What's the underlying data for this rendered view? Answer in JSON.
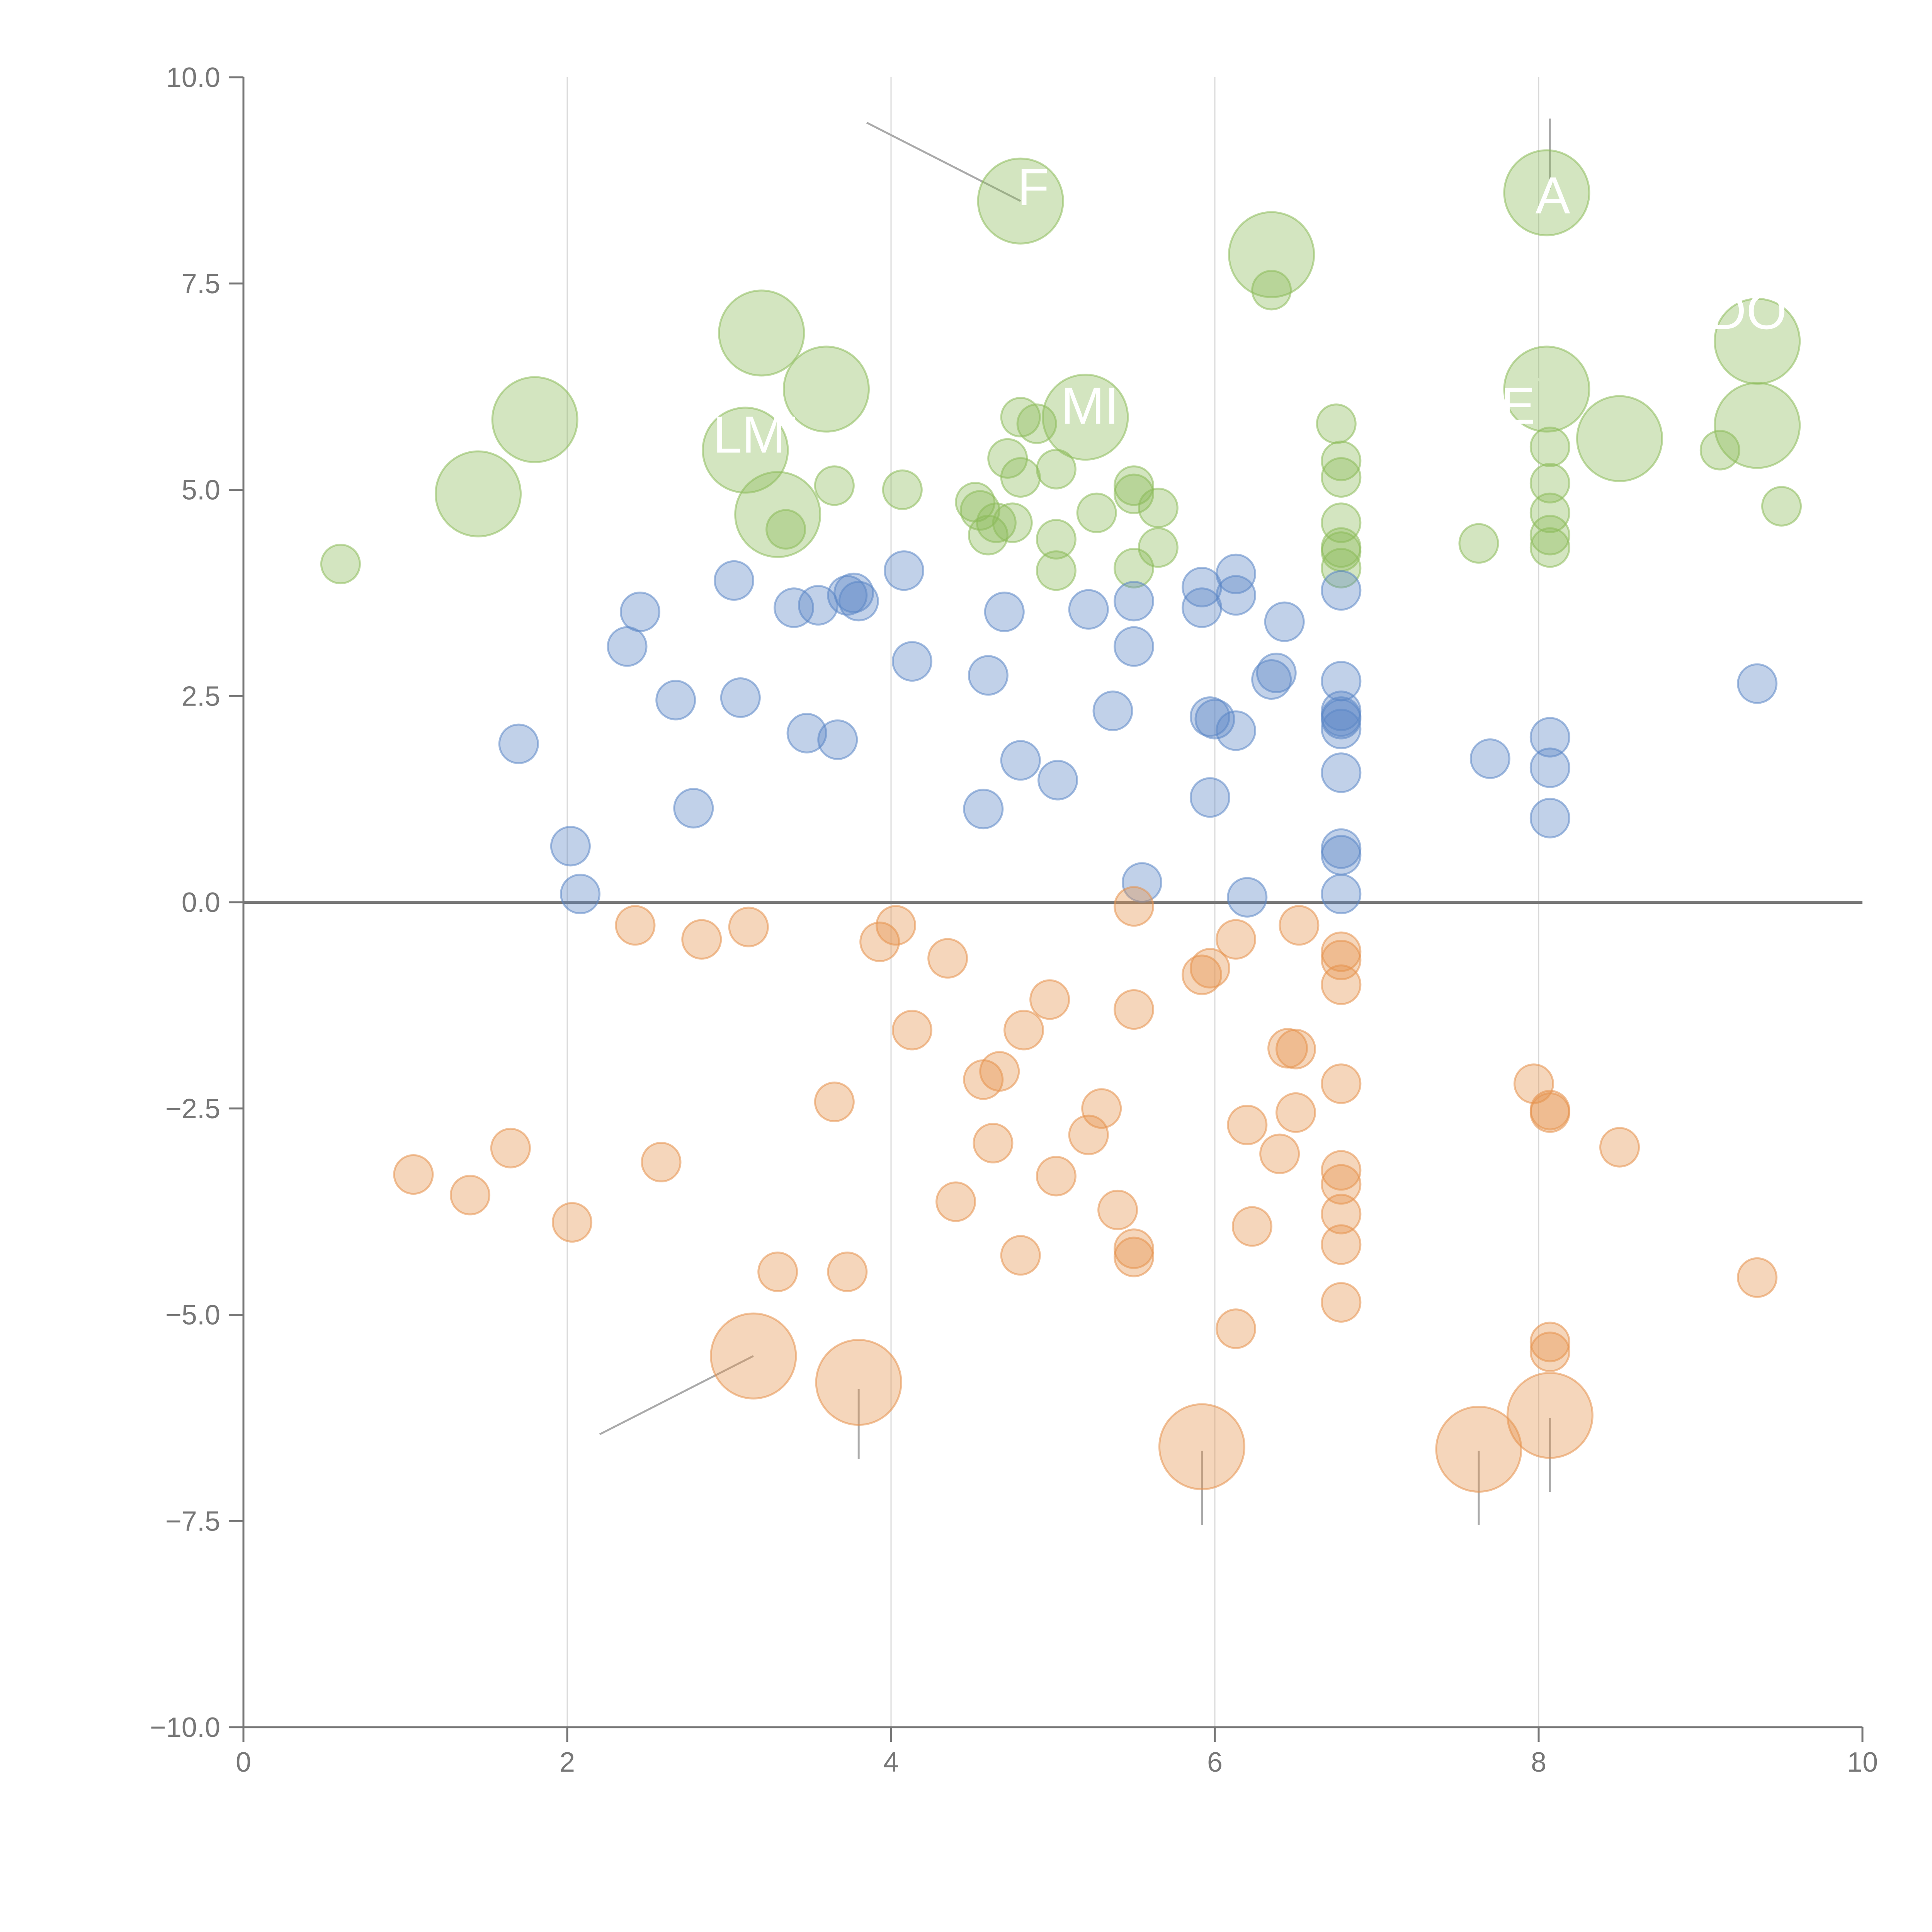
{
  "chart_data": {
    "type": "scatter",
    "title": "",
    "xlabel": "",
    "ylabel": "",
    "xlim": [
      0,
      10
    ],
    "ylim": [
      -10,
      10
    ],
    "x_ticks": [
      "0",
      "2",
      "4",
      "6",
      "8",
      "10"
    ],
    "y_ticks": [
      "−10.0",
      "−7.5",
      "−5.0",
      "−2.5",
      "0.0",
      "2.5",
      "5.0",
      "7.5",
      "10.0"
    ],
    "vertical_gridlines_at": [
      2,
      4,
      6,
      8
    ],
    "zero_line": true,
    "colors": {
      "green": "#8cbb5a",
      "blue": "#5b86c6",
      "orange": "#e6924c",
      "axis": "#777777",
      "grid": "#d9d9d9",
      "leader": "#aaaaaa"
    },
    "series": [
      {
        "name": "green",
        "color": "#8cbb5a",
        "points": [
          [
            0.6,
            4.1,
            1
          ],
          [
            1.45,
            4.95,
            2.2
          ],
          [
            1.8,
            5.85,
            2.2
          ],
          [
            3.2,
            6.9,
            2.2
          ],
          [
            3.6,
            6.22,
            2.2
          ],
          [
            3.1,
            5.48,
            2.2
          ],
          [
            3.3,
            4.7,
            2.2
          ],
          [
            3.35,
            4.52,
            1
          ],
          [
            3.65,
            5.05,
            1
          ],
          [
            4.07,
            5.0,
            1
          ],
          [
            4.52,
            4.85,
            1
          ],
          [
            4.55,
            4.75,
            1
          ],
          [
            4.6,
            4.45,
            1
          ],
          [
            4.65,
            4.6,
            1
          ],
          [
            4.75,
            4.6,
            1
          ],
          [
            4.72,
            5.38,
            1
          ],
          [
            4.8,
            5.15,
            1
          ],
          [
            4.8,
            5.88,
            1
          ],
          [
            4.9,
            5.8,
            1
          ],
          [
            4.8,
            8.5,
            2.2
          ],
          [
            5.02,
            5.25,
            1
          ],
          [
            5.02,
            4.4,
            1
          ],
          [
            5.02,
            4.02,
            1
          ],
          [
            5.2,
            5.88,
            2.2
          ],
          [
            5.27,
            4.72,
            1
          ],
          [
            5.5,
            5.05,
            1
          ],
          [
            5.5,
            4.95,
            1
          ],
          [
            5.5,
            4.05,
            1
          ],
          [
            5.65,
            4.78,
            1
          ],
          [
            5.65,
            4.3,
            1
          ],
          [
            6.35,
            7.85,
            2.2
          ],
          [
            6.35,
            7.42,
            1
          ],
          [
            6.75,
            5.8,
            1
          ],
          [
            6.78,
            5.35,
            1
          ],
          [
            6.78,
            5.15,
            1
          ],
          [
            6.78,
            4.6,
            1
          ],
          [
            6.78,
            4.3,
            1
          ],
          [
            6.78,
            4.25,
            1
          ],
          [
            6.78,
            4.05,
            1
          ],
          [
            7.63,
            4.35,
            1
          ],
          [
            8.05,
            8.6,
            2.2
          ],
          [
            8.05,
            6.22,
            2.2
          ],
          [
            8.07,
            5.52,
            1
          ],
          [
            8.07,
            5.08,
            1
          ],
          [
            8.07,
            4.72,
            1
          ],
          [
            8.07,
            4.45,
            1
          ],
          [
            8.07,
            4.3,
            1
          ],
          [
            8.5,
            5.62,
            2.2
          ],
          [
            9.12,
            5.48,
            1
          ],
          [
            9.35,
            6.8,
            2.2
          ],
          [
            9.35,
            5.78,
            2.2
          ],
          [
            9.5,
            4.8,
            1
          ]
        ]
      },
      {
        "name": "blue",
        "color": "#5b86c6",
        "points": [
          [
            1.7,
            1.92,
            1
          ],
          [
            2.02,
            0.68,
            1
          ],
          [
            2.08,
            0.1,
            1
          ],
          [
            2.37,
            3.1,
            1
          ],
          [
            2.45,
            3.52,
            1
          ],
          [
            2.67,
            2.45,
            1
          ],
          [
            2.78,
            1.14,
            1
          ],
          [
            3.03,
            3.9,
            1
          ],
          [
            3.07,
            2.48,
            1
          ],
          [
            3.4,
            3.57,
            1
          ],
          [
            3.48,
            2.05,
            1
          ],
          [
            3.55,
            3.6,
            1
          ],
          [
            3.67,
            1.97,
            1
          ],
          [
            3.73,
            3.72,
            1
          ],
          [
            3.77,
            3.75,
            1
          ],
          [
            3.8,
            3.65,
            1
          ],
          [
            4.08,
            4.02,
            1
          ],
          [
            4.13,
            2.92,
            1
          ],
          [
            4.57,
            1.13,
            1
          ],
          [
            4.6,
            2.75,
            1
          ],
          [
            4.7,
            3.52,
            1
          ],
          [
            4.8,
            1.72,
            1
          ],
          [
            5.03,
            1.48,
            1
          ],
          [
            5.22,
            3.55,
            1
          ],
          [
            5.37,
            2.32,
            1
          ],
          [
            5.5,
            3.65,
            1
          ],
          [
            5.5,
            3.1,
            1
          ],
          [
            5.55,
            0.24,
            1
          ],
          [
            5.92,
            3.82,
            1
          ],
          [
            5.92,
            3.57,
            1
          ],
          [
            5.97,
            1.27,
            1
          ],
          [
            5.97,
            2.25,
            1
          ],
          [
            6.0,
            2.22,
            1
          ],
          [
            6.13,
            3.98,
            1
          ],
          [
            6.13,
            3.72,
            1
          ],
          [
            6.13,
            2.08,
            1
          ],
          [
            6.2,
            0.06,
            1
          ],
          [
            6.35,
            2.7,
            1
          ],
          [
            6.38,
            2.78,
            1
          ],
          [
            6.43,
            3.4,
            1
          ],
          [
            6.78,
            3.78,
            1
          ],
          [
            6.78,
            2.68,
            1
          ],
          [
            6.78,
            2.32,
            1
          ],
          [
            6.78,
            2.25,
            1
          ],
          [
            6.78,
            2.22,
            1
          ],
          [
            6.78,
            2.1,
            1
          ],
          [
            6.78,
            1.57,
            1
          ],
          [
            6.78,
            0.65,
            1
          ],
          [
            6.78,
            0.57,
            1
          ],
          [
            6.78,
            0.1,
            1
          ],
          [
            7.7,
            1.74,
            1
          ],
          [
            8.07,
            2.0,
            1
          ],
          [
            8.07,
            1.63,
            1
          ],
          [
            8.07,
            1.02,
            1
          ],
          [
            9.35,
            2.65,
            1
          ]
        ]
      },
      {
        "name": "orange",
        "color": "#e6924c",
        "points": [
          [
            1.05,
            -3.3,
            1
          ],
          [
            1.4,
            -3.55,
            1
          ],
          [
            1.65,
            -2.98,
            1
          ],
          [
            2.03,
            -3.88,
            1
          ],
          [
            2.42,
            -0.28,
            1
          ],
          [
            2.58,
            -3.15,
            1
          ],
          [
            2.83,
            -0.45,
            1
          ],
          [
            3.12,
            -0.3,
            1
          ],
          [
            3.15,
            -5.5,
            2.2
          ],
          [
            3.3,
            -4.48,
            1
          ],
          [
            3.65,
            -2.42,
            1
          ],
          [
            3.73,
            -4.48,
            1
          ],
          [
            3.8,
            -5.82,
            2.2
          ],
          [
            3.93,
            -0.48,
            1
          ],
          [
            4.03,
            -0.28,
            1
          ],
          [
            4.13,
            -1.55,
            1
          ],
          [
            4.35,
            -0.68,
            1
          ],
          [
            4.4,
            -3.63,
            1
          ],
          [
            4.57,
            -2.15,
            1
          ],
          [
            4.63,
            -2.92,
            1
          ],
          [
            4.67,
            -2.05,
            1
          ],
          [
            4.8,
            -4.28,
            1
          ],
          [
            4.82,
            -1.55,
            1
          ],
          [
            4.98,
            -1.18,
            1
          ],
          [
            5.02,
            -3.32,
            1
          ],
          [
            5.22,
            -2.82,
            1
          ],
          [
            5.3,
            -2.5,
            1
          ],
          [
            5.4,
            -3.73,
            1
          ],
          [
            5.5,
            -0.05,
            1
          ],
          [
            5.5,
            -1.3,
            1
          ],
          [
            5.5,
            -4.2,
            1
          ],
          [
            5.5,
            -4.3,
            1
          ],
          [
            5.92,
            -6.6,
            2.2
          ],
          [
            5.92,
            -0.88,
            1
          ],
          [
            5.97,
            -0.8,
            1
          ],
          [
            6.13,
            -0.45,
            1
          ],
          [
            6.13,
            -5.17,
            1
          ],
          [
            6.2,
            -2.7,
            1
          ],
          [
            6.23,
            -3.93,
            1
          ],
          [
            6.4,
            -3.05,
            1
          ],
          [
            6.45,
            -1.77,
            1
          ],
          [
            6.5,
            -1.78,
            1
          ],
          [
            6.5,
            -2.55,
            1
          ],
          [
            6.52,
            -0.28,
            1
          ],
          [
            6.78,
            -0.6,
            1
          ],
          [
            6.78,
            -0.7,
            1
          ],
          [
            6.78,
            -1.0,
            1
          ],
          [
            6.78,
            -2.2,
            1
          ],
          [
            6.78,
            -3.25,
            1
          ],
          [
            6.78,
            -3.42,
            1
          ],
          [
            6.78,
            -3.78,
            1
          ],
          [
            6.78,
            -4.15,
            1
          ],
          [
            6.78,
            -4.85,
            1
          ],
          [
            7.63,
            -6.63,
            2.2
          ],
          [
            7.97,
            -2.2,
            1
          ],
          [
            8.07,
            -2.52,
            1
          ],
          [
            8.07,
            -2.55,
            1
          ],
          [
            8.07,
            -5.33,
            1
          ],
          [
            8.07,
            -5.45,
            1
          ],
          [
            8.07,
            -6.22,
            2.2
          ],
          [
            8.5,
            -2.97,
            1
          ],
          [
            9.35,
            -4.55,
            1
          ]
        ]
      }
    ],
    "leader_lines": [
      {
        "from": [
          3.85,
          9.45
        ],
        "to": [
          4.8,
          8.5
        ],
        "color": "#aaaaaa"
      },
      {
        "from": [
          8.07,
          9.5
        ],
        "to": [
          8.07,
          8.65
        ],
        "color": "#aaaaaa"
      },
      {
        "from": [
          6.25,
          8.0
        ],
        "to": [
          6.35,
          7.85
        ],
        "color": "#ffffff"
      },
      {
        "from": [
          3.15,
          7.2
        ],
        "to": [
          3.2,
          6.9
        ],
        "color": "#ffffff"
      },
      {
        "from": [
          3.75,
          6.5
        ],
        "to": [
          3.6,
          6.22
        ],
        "color": "#ffffff"
      },
      {
        "from": [
          1.75,
          6.15
        ],
        "to": [
          1.8,
          5.85
        ],
        "color": "#ffffff"
      },
      {
        "from": [
          1.3,
          5.1
        ],
        "to": [
          1.45,
          4.95
        ],
        "color": "#ffffff"
      },
      {
        "from": [
          3.05,
          5.5
        ],
        "to": [
          3.1,
          5.48
        ],
        "color": "#ffffff"
      },
      {
        "from": [
          3.05,
          4.65
        ],
        "to": [
          3.3,
          4.7
        ],
        "color": "#ffffff"
      },
      {
        "from": [
          8.3,
          5.75
        ],
        "to": [
          8.5,
          5.62
        ],
        "color": "#ffffff"
      },
      {
        "from": [
          7.95,
          6.45
        ],
        "to": [
          8.05,
          6.22
        ],
        "color": "#ffffff"
      },
      {
        "from": [
          9.33,
          6.45
        ],
        "to": [
          9.35,
          5.78
        ],
        "color": "#ffffff"
      },
      {
        "from": [
          2.2,
          -6.45
        ],
        "to": [
          3.15,
          -5.5
        ],
        "color": "#aaaaaa"
      },
      {
        "from": [
          3.8,
          -5.9
        ],
        "to": [
          3.8,
          -6.75
        ],
        "color": "#aaaaaa"
      },
      {
        "from": [
          5.92,
          -6.65
        ],
        "to": [
          5.92,
          -7.55
        ],
        "color": "#aaaaaa"
      },
      {
        "from": [
          7.63,
          -6.65
        ],
        "to": [
          7.63,
          -7.55
        ],
        "color": "#aaaaaa"
      },
      {
        "from": [
          8.07,
          -6.25
        ],
        "to": [
          8.07,
          -7.15
        ],
        "color": "#aaaaaa"
      }
    ],
    "annotations": [
      {
        "text": "F",
        "x": 4.78,
        "y": 8.45
      },
      {
        "text": "A",
        "x": 7.98,
        "y": 8.35
      },
      {
        "text": "DO",
        "x": 9.05,
        "y": 6.95
      },
      {
        "text": "MI",
        "x": 5.05,
        "y": 5.8
      },
      {
        "text": "YE",
        "x": 7.55,
        "y": 5.8
      },
      {
        "text": "LMI",
        "x": 2.9,
        "y": 5.45
      }
    ]
  }
}
